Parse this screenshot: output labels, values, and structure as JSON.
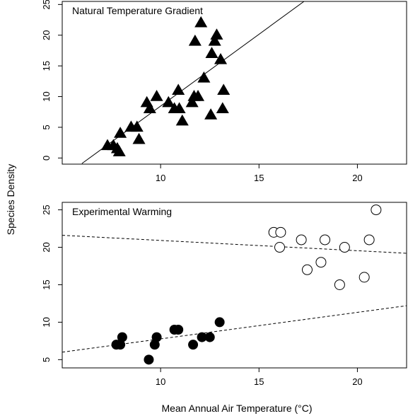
{
  "figure": {
    "shared_ylabel": "Species Density",
    "shared_xlabel": "Mean Annual Air Temperature (°C)"
  },
  "chart_data": [
    {
      "type": "scatter",
      "title": "Natural Temperature Gradient",
      "xlim": [
        5,
        22.5
      ],
      "ylim": [
        -1,
        25.5
      ],
      "xticks": [
        10,
        15,
        20
      ],
      "yticks": [
        0,
        5,
        10,
        15,
        20,
        25
      ],
      "xtick_labels": [
        "10",
        "15",
        "20"
      ],
      "ytick_labels": [
        "0",
        "5",
        "10",
        "15",
        "20",
        "25"
      ],
      "series": [
        {
          "marker": "filled-triangle",
          "color": "#000000",
          "points": [
            {
              "x": 7.3,
              "y": 2
            },
            {
              "x": 7.6,
              "y": 2
            },
            {
              "x": 7.8,
              "y": 1.5
            },
            {
              "x": 7.9,
              "y": 1
            },
            {
              "x": 7.95,
              "y": 4
            },
            {
              "x": 8.5,
              "y": 5
            },
            {
              "x": 8.8,
              "y": 5
            },
            {
              "x": 8.9,
              "y": 3
            },
            {
              "x": 9.3,
              "y": 9
            },
            {
              "x": 9.45,
              "y": 8
            },
            {
              "x": 9.8,
              "y": 10
            },
            {
              "x": 10.4,
              "y": 9
            },
            {
              "x": 10.7,
              "y": 8
            },
            {
              "x": 10.95,
              "y": 8
            },
            {
              "x": 10.9,
              "y": 11
            },
            {
              "x": 11.1,
              "y": 6
            },
            {
              "x": 11.6,
              "y": 9
            },
            {
              "x": 11.7,
              "y": 10
            },
            {
              "x": 11.75,
              "y": 19
            },
            {
              "x": 11.9,
              "y": 10
            },
            {
              "x": 12.05,
              "y": 22
            },
            {
              "x": 12.2,
              "y": 13
            },
            {
              "x": 12.55,
              "y": 7
            },
            {
              "x": 12.6,
              "y": 17
            },
            {
              "x": 12.75,
              "y": 19
            },
            {
              "x": 12.85,
              "y": 20
            },
            {
              "x": 13.05,
              "y": 16
            },
            {
              "x": 13.15,
              "y": 8
            },
            {
              "x": 13.2,
              "y": 11
            }
          ]
        }
      ],
      "fit_line": {
        "style": "solid",
        "x": [
          6,
          17.5
        ],
        "y": [
          -0.9,
          26
        ]
      }
    },
    {
      "type": "scatter",
      "title": "Experimental Warming",
      "xlim": [
        5,
        22.5
      ],
      "ylim": [
        3.9,
        26
      ],
      "xticks": [
        10,
        15,
        20
      ],
      "yticks": [
        5,
        10,
        15,
        20,
        25
      ],
      "xtick_labels": [
        "10",
        "15",
        "20"
      ],
      "ytick_labels": [
        "5",
        "10",
        "15",
        "20",
        "25"
      ],
      "series": [
        {
          "marker": "filled-circle",
          "color": "#000000",
          "points": [
            {
              "x": 7.75,
              "y": 7
            },
            {
              "x": 7.95,
              "y": 7
            },
            {
              "x": 8.05,
              "y": 8
            },
            {
              "x": 9.4,
              "y": 5
            },
            {
              "x": 9.7,
              "y": 7
            },
            {
              "x": 9.8,
              "y": 8
            },
            {
              "x": 10.7,
              "y": 9
            },
            {
              "x": 10.9,
              "y": 9
            },
            {
              "x": 11.65,
              "y": 7
            },
            {
              "x": 12.1,
              "y": 8
            },
            {
              "x": 12.5,
              "y": 8
            },
            {
              "x": 13.0,
              "y": 10
            }
          ]
        },
        {
          "marker": "open-circle",
          "color": "#000000",
          "points": [
            {
              "x": 15.75,
              "y": 22
            },
            {
              "x": 16.1,
              "y": 22
            },
            {
              "x": 16.05,
              "y": 20
            },
            {
              "x": 17.15,
              "y": 21
            },
            {
              "x": 17.45,
              "y": 17
            },
            {
              "x": 18.15,
              "y": 18
            },
            {
              "x": 18.35,
              "y": 21
            },
            {
              "x": 19.1,
              "y": 15
            },
            {
              "x": 19.35,
              "y": 20
            },
            {
              "x": 20.35,
              "y": 16
            },
            {
              "x": 20.6,
              "y": 21
            },
            {
              "x": 20.95,
              "y": 25
            }
          ]
        }
      ],
      "fit_lines": [
        {
          "style": "dashed",
          "x": [
            5,
            22.5
          ],
          "y": [
            21.6,
            19.2
          ]
        },
        {
          "style": "dashed",
          "x": [
            5,
            22.5
          ],
          "y": [
            6,
            12.2
          ]
        }
      ]
    }
  ]
}
